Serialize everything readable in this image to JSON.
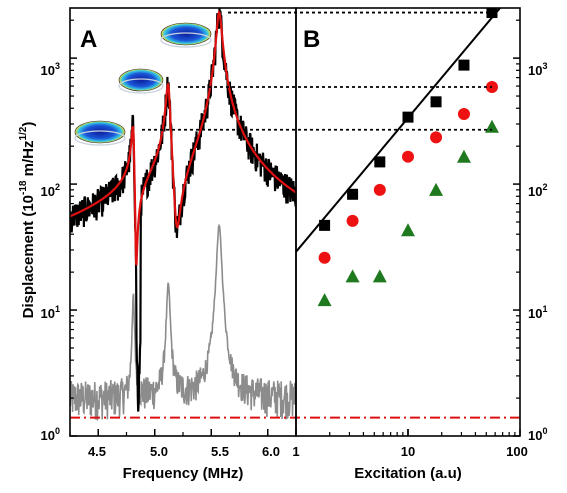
{
  "colors": {
    "measured": "#000000",
    "fit": "#e01010",
    "noise": "#8c8c8c",
    "noise_floor": "#dd1111",
    "squares": "#000000",
    "circles": "#ee1111",
    "triangles": "#1f7a1f"
  },
  "chart_data": [
    {
      "panel": "A",
      "type": "line",
      "x_label": "Frequency (MHz)",
      "y_label_main": "Displacement (10",
      "y_label_exp1": "-18",
      "y_label_mid": " m/Hz",
      "y_label_exp2": "1/2",
      "y_label_end": ")",
      "xlim": [
        4.25,
        6.25
      ],
      "ylim": [
        1,
        2500
      ],
      "y_scale": "log",
      "x_tick_labels": [
        "4.5",
        "5.0",
        "5.5",
        "6.0"
      ],
      "x_ticks": [
        4.5,
        5.0,
        5.5,
        6.0
      ],
      "y_ticks": [
        1,
        10,
        100,
        1000
      ],
      "y_tick_labels": [
        {
          "base": "10",
          "exp": "0"
        },
        {
          "base": "10",
          "exp": "1"
        },
        {
          "base": "10",
          "exp": "2"
        },
        {
          "base": "10",
          "exp": "3"
        }
      ],
      "resonances_mhz": [
        4.81,
        5.12,
        5.57
      ],
      "peak_displacements": [
        270,
        590,
        2300
      ],
      "noise_floor_level": 1.4,
      "series": [
        {
          "role": "measured",
          "peaks": [
            270,
            590,
            2300
          ],
          "background": 14
        },
        {
          "role": "lorentzian-fit",
          "peaks": [
            270,
            590,
            2300
          ]
        },
        {
          "role": "noise-spectrum",
          "peaks": [
            11,
            14,
            45
          ],
          "background": 1.6
        }
      ]
    },
    {
      "panel": "B",
      "type": "scatter",
      "x_label": "Excitation (a.u)",
      "x_scale": "log",
      "y_scale": "log",
      "xlim": [
        1,
        100
      ],
      "ylim": [
        1,
        2500
      ],
      "x_ticks": [
        1,
        10,
        100
      ],
      "x_tick_labels": [
        "1",
        "10",
        "100"
      ],
      "y_ticks": [
        1,
        10,
        100,
        1000
      ],
      "y_tick_labels": [
        {
          "base": "10",
          "exp": "0"
        },
        {
          "base": "10",
          "exp": "1"
        },
        {
          "base": "10",
          "exp": "2"
        },
        {
          "base": "10",
          "exp": "3"
        }
      ],
      "series": [
        {
          "marker": "square",
          "x": [
            1.8,
            3.2,
            5.6,
            10,
            17.8,
            31.6,
            56.2
          ],
          "y": [
            47,
            83,
            150,
            340,
            450,
            880,
            2300
          ]
        },
        {
          "marker": "circle",
          "x": [
            1.8,
            3.2,
            5.6,
            10,
            17.8,
            31.6,
            56.2
          ],
          "y": [
            26,
            51,
            90,
            165,
            235,
            360,
            590
          ]
        },
        {
          "marker": "triangle",
          "x": [
            1.8,
            3.2,
            5.6,
            10,
            17.8,
            31.6,
            56.2
          ],
          "y": [
            12,
            18.5,
            18.5,
            43,
            90,
            165,
            285
          ]
        }
      ],
      "fit_line": {
        "x": [
          1.0,
          70
        ],
        "y": [
          29,
          2650
        ]
      },
      "noise_floor_level": 1.4
    }
  ]
}
